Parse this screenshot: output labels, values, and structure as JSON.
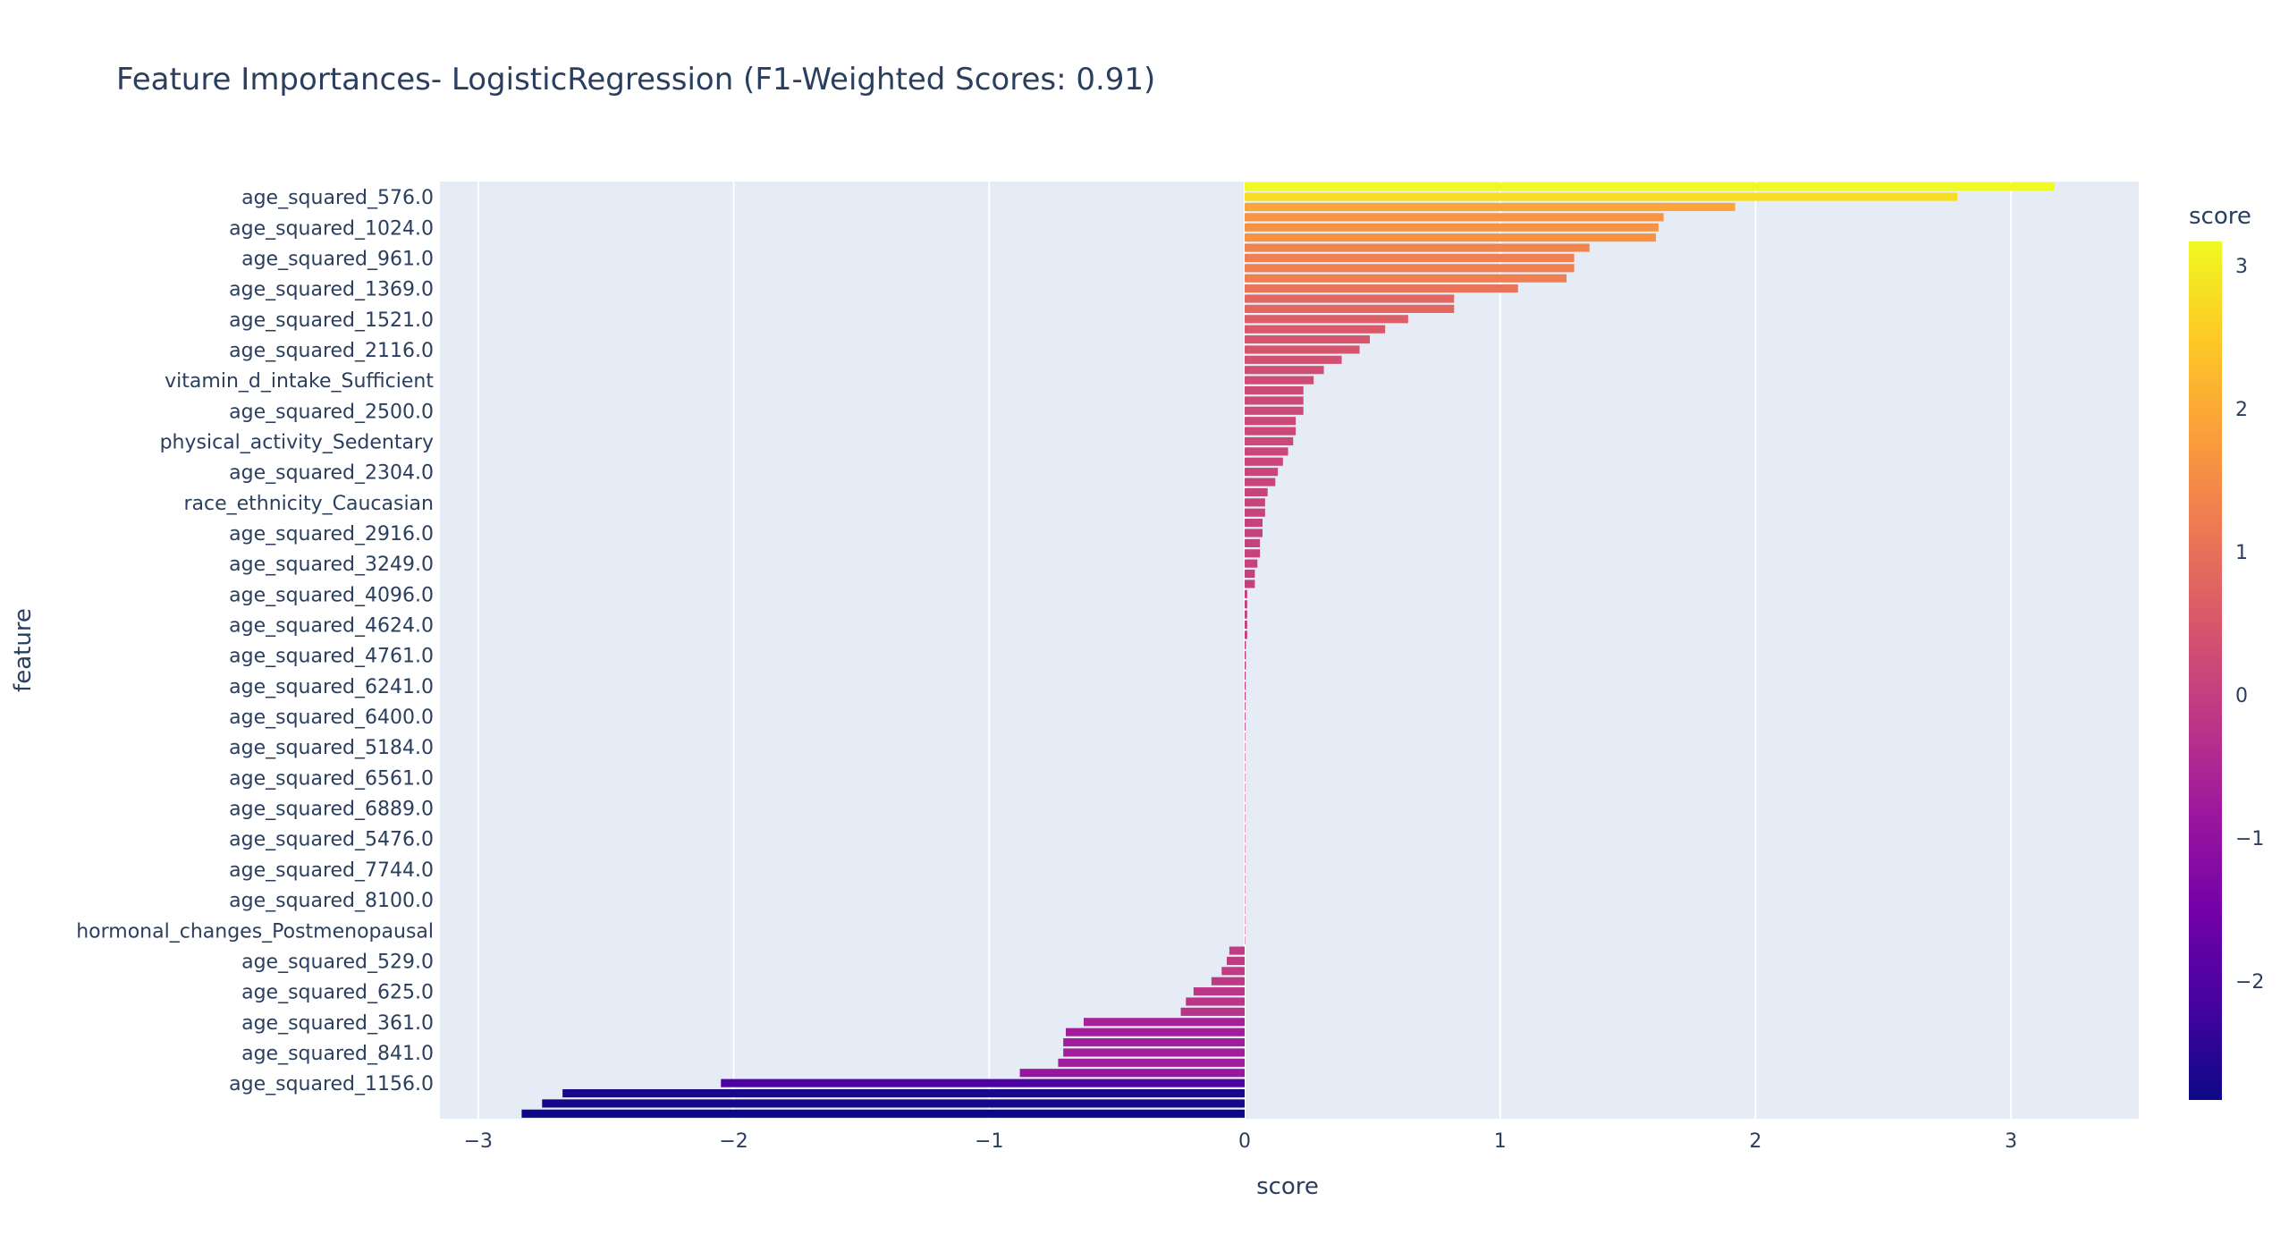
{
  "chart_data": {
    "type": "bar",
    "orientation": "horizontal",
    "title": "Feature Importances- LogisticRegression (F1-Weighted Scores: 0.91)",
    "xlabel": "score",
    "ylabel": "feature",
    "xlim": [
      -3.15,
      3.5
    ],
    "xticks": [
      -3,
      -2,
      -1,
      0,
      1,
      2,
      3
    ],
    "xtick_labels": [
      "−3",
      "−2",
      "−1",
      "0",
      "1",
      "2",
      "3"
    ],
    "grid": true,
    "colorbar": {
      "title": "score",
      "range": [
        -2.83,
        3.17
      ],
      "ticks": [
        3,
        2,
        1,
        0,
        -1,
        -2
      ],
      "tick_labels": [
        "3",
        "2",
        "1",
        "0",
        "−1",
        "−2"
      ],
      "colors": [
        "#0d0887",
        "#46039f",
        "#7201a8",
        "#9c179e",
        "#bd3786",
        "#d8576b",
        "#ed7953",
        "#fb9f3a",
        "#fdca26",
        "#f0f921"
      ]
    },
    "bar_values": [
      3.17,
      2.79,
      1.92,
      1.64,
      1.62,
      1.61,
      1.35,
      1.29,
      1.29,
      1.26,
      1.07,
      0.82,
      0.82,
      0.64,
      0.55,
      0.49,
      0.45,
      0.38,
      0.31,
      0.27,
      0.23,
      0.23,
      0.23,
      0.2,
      0.2,
      0.19,
      0.17,
      0.15,
      0.13,
      0.12,
      0.09,
      0.08,
      0.08,
      0.07,
      0.07,
      0.06,
      0.06,
      0.05,
      0.04,
      0.04,
      0.01,
      0.01,
      0.01,
      0.01,
      0.01,
      0.005,
      0.005,
      0.005,
      0.004,
      0.004,
      0.004,
      0.003,
      0.003,
      0.003,
      0.002,
      0.002,
      0.002,
      0.001,
      0.001,
      0.001,
      0.001,
      0.001,
      0.001,
      0.001,
      0.001,
      0.001,
      0.001,
      0.001,
      0.001,
      0.001,
      0.001,
      0.001,
      0.0,
      0.0,
      0.0,
      -0.06,
      -0.07,
      -0.09,
      -0.13,
      -0.2,
      -0.23,
      -0.25,
      -0.63,
      -0.7,
      -0.71,
      -0.71,
      -0.73,
      -0.88,
      -2.05,
      -2.67,
      -2.75,
      -2.83
    ],
    "labeled_features": [
      {
        "index": 1,
        "name": "age_squared_576.0"
      },
      {
        "index": 4,
        "name": "age_squared_1024.0"
      },
      {
        "index": 7,
        "name": "age_squared_961.0"
      },
      {
        "index": 10,
        "name": "age_squared_1369.0"
      },
      {
        "index": 13,
        "name": "age_squared_1521.0"
      },
      {
        "index": 16,
        "name": "age_squared_2116.0"
      },
      {
        "index": 19,
        "name": "vitamin_d_intake_Sufficient"
      },
      {
        "index": 22,
        "name": "age_squared_2500.0"
      },
      {
        "index": 25,
        "name": "physical_activity_Sedentary"
      },
      {
        "index": 28,
        "name": "age_squared_2304.0"
      },
      {
        "index": 31,
        "name": "race_ethnicity_Caucasian"
      },
      {
        "index": 34,
        "name": "age_squared_2916.0"
      },
      {
        "index": 37,
        "name": "age_squared_3249.0"
      },
      {
        "index": 40,
        "name": "age_squared_4096.0"
      },
      {
        "index": 43,
        "name": "age_squared_4624.0"
      },
      {
        "index": 46,
        "name": "age_squared_4761.0"
      },
      {
        "index": 49,
        "name": "age_squared_6241.0"
      },
      {
        "index": 52,
        "name": "age_squared_6400.0"
      },
      {
        "index": 55,
        "name": "age_squared_5184.0"
      },
      {
        "index": 58,
        "name": "age_squared_6561.0"
      },
      {
        "index": 61,
        "name": "age_squared_6889.0"
      },
      {
        "index": 64,
        "name": "age_squared_5476.0"
      },
      {
        "index": 67,
        "name": "age_squared_7744.0"
      },
      {
        "index": 70,
        "name": "age_squared_8100.0"
      },
      {
        "index": 73,
        "name": "hormonal_changes_Postmenopausal"
      },
      {
        "index": 76,
        "name": "age_squared_529.0"
      },
      {
        "index": 79,
        "name": "age_squared_625.0"
      },
      {
        "index": 82,
        "name": "age_squared_361.0"
      },
      {
        "index": 85,
        "name": "age_squared_841.0"
      },
      {
        "index": 88,
        "name": "age_squared_1156.0"
      }
    ]
  }
}
